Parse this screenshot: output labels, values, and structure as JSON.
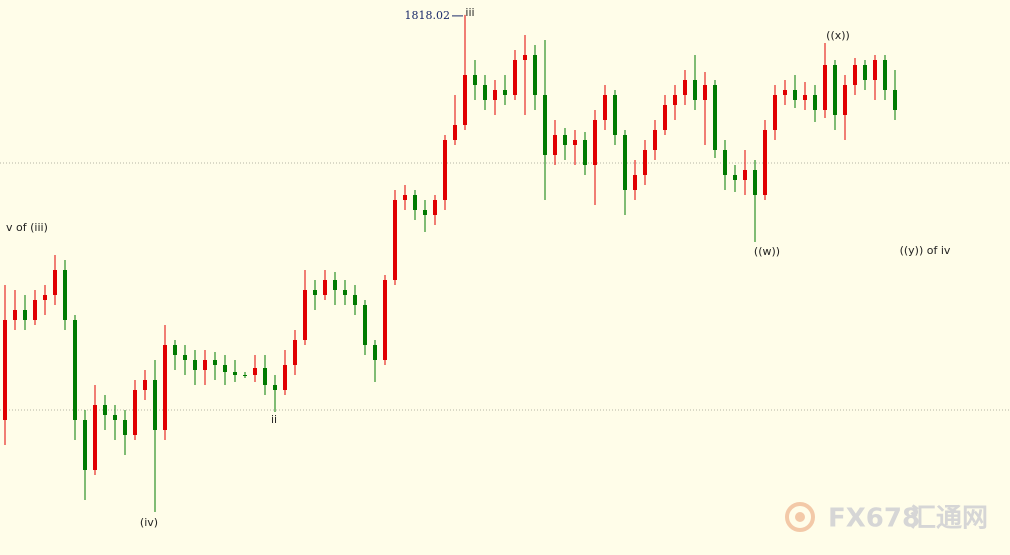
{
  "chart_data": {
    "type": "candlestick",
    "ylim": [
      1710,
      1821
    ],
    "hlines": [
      1788.4,
      1739
    ],
    "up_color": "#e00000",
    "down_color": "#007a00",
    "open": [
      1737,
      1757,
      1759,
      1757,
      1761,
      1762,
      1767,
      1757,
      1737,
      1727,
      1740,
      1738,
      1737,
      1734,
      1743,
      1745,
      1735,
      1752,
      1750,
      1749,
      1747,
      1749,
      1748,
      1746.6,
      1746,
      1746,
      1747.4,
      1744,
      1743,
      1748,
      1753,
      1763,
      1762,
      1765,
      1763,
      1762,
      1760,
      1752,
      1749,
      1765,
      1781,
      1782,
      1779,
      1778,
      1781,
      1793,
      1796,
      1806,
      1804,
      1801,
      1803,
      1802,
      1809,
      1810,
      1802,
      1790,
      1794,
      1792,
      1793,
      1788,
      1797,
      1802,
      1794,
      1783,
      1786,
      1791,
      1795,
      1800,
      1802,
      1805,
      1801,
      1804,
      1791,
      1786,
      1785,
      1787,
      1782,
      1795,
      1802,
      1803,
      1801,
      1802,
      1799,
      1808,
      1798,
      1804,
      1808,
      1805,
      1809,
      1803
    ],
    "high": [
      1764,
      1763,
      1762,
      1763,
      1764,
      1770,
      1769,
      1758,
      1739,
      1744,
      1742,
      1740,
      1739,
      1745,
      1747,
      1749,
      1756,
      1753,
      1752,
      1751,
      1751,
      1750.6,
      1750,
      1749,
      1746.6,
      1750,
      1750,
      1746,
      1751,
      1755,
      1767,
      1765,
      1767,
      1766.6,
      1765,
      1764,
      1761,
      1753,
      1766,
      1783,
      1784,
      1783,
      1781,
      1782,
      1794,
      1802,
      1818.02,
      1809,
      1806,
      1805,
      1806,
      1811,
      1814,
      1812,
      1813,
      1797,
      1795.4,
      1795,
      1794.6,
      1799,
      1804,
      1803,
      1795,
      1789,
      1793,
      1797,
      1802,
      1804,
      1807,
      1810,
      1806.6,
      1805,
      1793,
      1788,
      1791,
      1789,
      1797,
      1804,
      1805,
      1806,
      1804.6,
      1804,
      1812.4,
      1809,
      1806,
      1809.4,
      1809,
      1810,
      1810,
      1807
    ],
    "low": [
      1732,
      1755,
      1755,
      1756,
      1758,
      1760,
      1755,
      1733,
      1721,
      1726,
      1735,
      1733,
      1730,
      1733,
      1741,
      1718.6,
      1733,
      1747,
      1746,
      1744,
      1744,
      1745,
      1744,
      1744.6,
      1745.4,
      1744.6,
      1742,
      1738.6,
      1742,
      1746,
      1752,
      1759,
      1761,
      1760,
      1760,
      1758,
      1750,
      1744.6,
      1748,
      1764,
      1779,
      1777,
      1774.6,
      1776,
      1779,
      1792,
      1795,
      1801,
      1799,
      1798,
      1800,
      1801,
      1798,
      1799,
      1781,
      1788,
      1789,
      1788,
      1786,
      1780,
      1795,
      1792,
      1778,
      1781,
      1784,
      1789,
      1794,
      1797,
      1800,
      1799,
      1792,
      1789.4,
      1783,
      1782.6,
      1782,
      1772.6,
      1781,
      1793,
      1800,
      1799.4,
      1799,
      1796.6,
      1797.4,
      1795,
      1793,
      1802,
      1803,
      1801,
      1801,
      1797
    ],
    "close": [
      1757,
      1759,
      1757,
      1761,
      1762,
      1767,
      1757,
      1737,
      1727,
      1740,
      1738,
      1737,
      1734,
      1743,
      1745,
      1735,
      1752,
      1750,
      1749,
      1747,
      1749,
      1748,
      1746.6,
      1746,
      1745.8,
      1747.4,
      1744,
      1743,
      1748,
      1753,
      1763,
      1762,
      1765,
      1763,
      1762,
      1760,
      1752,
      1749,
      1765,
      1781,
      1782,
      1779,
      1778,
      1781,
      1793,
      1796,
      1806,
      1804,
      1801,
      1803,
      1802,
      1809,
      1810,
      1802,
      1790,
      1794,
      1792,
      1793,
      1788,
      1797,
      1802,
      1794,
      1783,
      1786,
      1791,
      1795,
      1800,
      1802,
      1805,
      1801,
      1804,
      1791,
      1786,
      1785,
      1787,
      1782,
      1795,
      1802,
      1803,
      1801,
      1802,
      1799,
      1808,
      1798,
      1804,
      1808,
      1805,
      1809,
      1803,
      1799
    ],
    "annotations": [
      "v of (iii)",
      "(iv)",
      "ii",
      "iii",
      "((w))",
      "((x))",
      "((y)) of iv"
    ],
    "watermark": "FX678",
    "watermark_cn": "汇通网"
  }
}
